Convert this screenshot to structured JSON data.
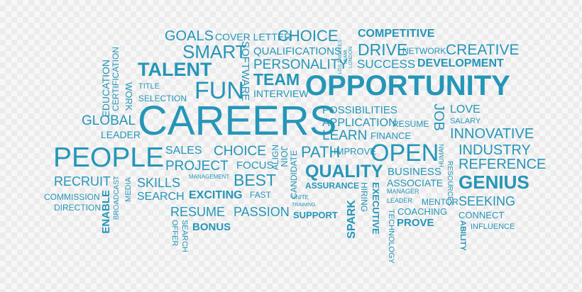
{
  "image": {
    "type": "word-cloud",
    "background": "#f7f7f7",
    "text_color": "#2596b8",
    "words": {
      "goals": "GOALS",
      "cover_letter": "COVER LETTER",
      "choice_top": "CHOICE",
      "competitive": "COMPETITIVE",
      "smart": "SMART",
      "qualifications": "QUALIFICATIONS",
      "drive": "DRIVE",
      "network": "NETWORK",
      "creative": "CREATIVE",
      "certification": "CERTIFICATION",
      "education": "EDUCATION",
      "software": "SOFTWARE",
      "personality": "PERSONALITY",
      "los_angeles": "LOS ANGELES",
      "miami": "MIAMI",
      "london": "LONDON",
      "success": "SUCCESS",
      "development": "DEVELOPMENT",
      "talent": "TALENT",
      "team": "TEAM",
      "work": "WORK",
      "title": "TITLE",
      "fun": "FUN",
      "interview": "INTERVIEW",
      "opportunity": "OPPORTUNITY",
      "selection": "SELECTION",
      "careers": "CAREERS",
      "possibilities": "POSSIBILITIES",
      "job": "JOB",
      "love": "LOVE",
      "global": "GLOBAL",
      "application": "APPLICATION",
      "resume_top": "RESUME",
      "salary": "SALARY",
      "leader_left": "LEADER",
      "learn": "LEARN",
      "finance": "FINANCE",
      "innovative": "INNOVATIVE",
      "people": "PEOPLE",
      "sales": "SALES",
      "choice_mid": "CHOICE",
      "align": "ALIGN",
      "join": "JOIN",
      "path": "PATH",
      "improve": "IMPROVE",
      "open": "OPEN",
      "human": "HUMAN",
      "industry": "INDUSTRY",
      "project": "PROJECT",
      "focus": "FOCUS",
      "candidate": "CANDIDATE",
      "reference": "REFERENCE",
      "quality": "QUALITY",
      "business": "BUSINESS",
      "resources": "RESOURCES",
      "recruit": "RECRUIT",
      "broadcast": "BROADCAST",
      "skills": "SKILLS",
      "management": "MANAGEMENT",
      "best": "BEST",
      "genius": "GENIUS",
      "associate": "ASSOCIATE",
      "media": "MEDIA",
      "assurance": "ASSURANCE",
      "hiring": "HIRING",
      "executive": "EXECUTIVE",
      "manager": "MANAGER",
      "commission": "COMMISSION",
      "enable": "ENABLE",
      "search_mid": "SEARCH",
      "exciting": "EXCITING",
      "fast": "FAST",
      "unite": "UNITE",
      "seeking": "SEEKING",
      "direction": "DIRECTION",
      "training": "TRAINING",
      "leader_right": "LEADER",
      "mentor": "MENTOR",
      "resume_bottom": "RESUME",
      "passion": "PASSION",
      "spark": "SPARK",
      "coaching": "COACHING",
      "connect": "CONNECT",
      "support": "SUPPORT",
      "technology": "TECHNOLOGY",
      "offer": "OFFER",
      "search_bottom": "SEARCH",
      "bonus": "BONUS",
      "prove": "PROVE",
      "ability": "ABILITY",
      "influence": "INFLUENCE"
    }
  }
}
